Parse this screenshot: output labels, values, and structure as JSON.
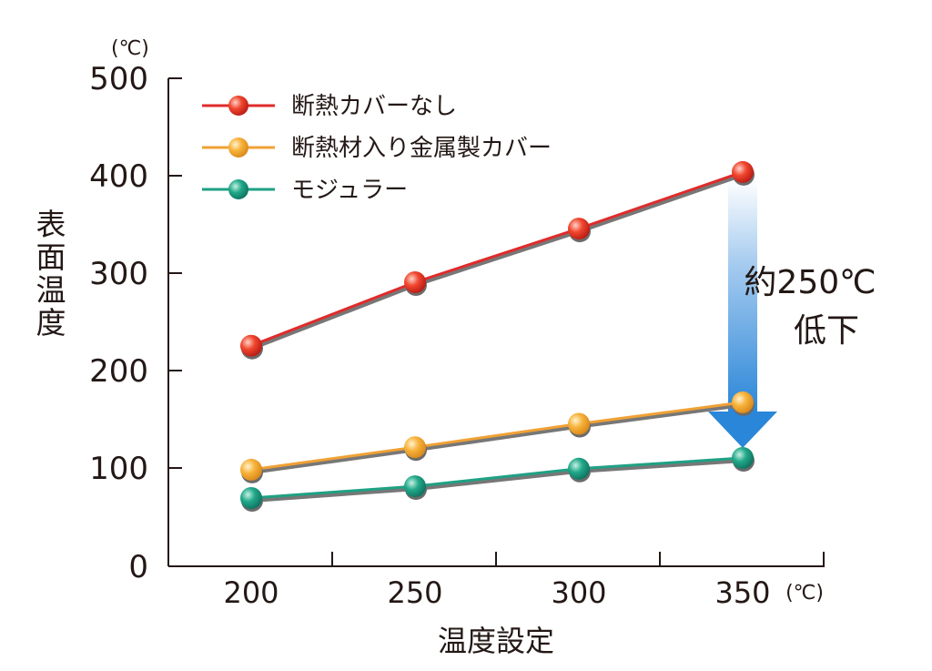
{
  "chart_data": {
    "type": "line",
    "categories": [
      "200",
      "250",
      "300",
      "350"
    ],
    "x_unit": "(℃)",
    "y_unit": "(℃)",
    "ylabel": "表面温度",
    "xlabel": "温度設定",
    "ylim": [
      0,
      500
    ],
    "y_ticks": [
      "0",
      "100",
      "200",
      "300",
      "400",
      "500"
    ],
    "legend_position": "top-left",
    "grid": false,
    "series": [
      {
        "name": "断熱カバーなし",
        "values": [
          226,
          291,
          346,
          404
        ],
        "color": "#e02b2b"
      },
      {
        "name": "断熱材入り金属製カバー",
        "values": [
          99,
          122,
          146,
          168
        ],
        "color": "#f0a135"
      },
      {
        "name": "モジュラー",
        "values": [
          70,
          82,
          100,
          111
        ],
        "color": "#1ea184"
      }
    ],
    "annotation": {
      "line1": "約250℃",
      "line2": "低下",
      "arrow_color": "#2a8bd6"
    }
  }
}
